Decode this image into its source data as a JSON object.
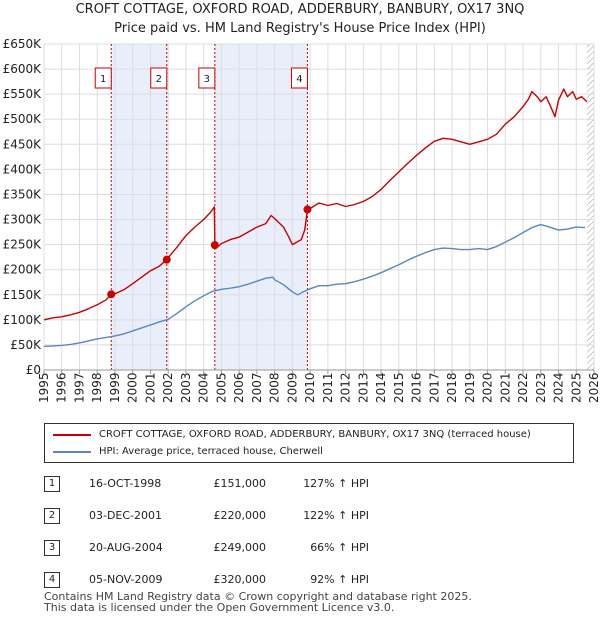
{
  "chart_data": {
    "type": "line",
    "title": "CROFT COTTAGE, OXFORD ROAD, ADDERBURY, BANBURY, OX17 3NQ",
    "subtitle": "Price paid vs. HM Land Registry's House Price Index (HPI)",
    "xlim": [
      1995,
      2026
    ],
    "ylim": [
      0,
      650000
    ],
    "x_ticks": [
      "1995",
      "1996",
      "1997",
      "1998",
      "1999",
      "2000",
      "2001",
      "2002",
      "2003",
      "2004",
      "2005",
      "2006",
      "2007",
      "2008",
      "2009",
      "2010",
      "2011",
      "2012",
      "2013",
      "2014",
      "2015",
      "2016",
      "2017",
      "2018",
      "2019",
      "2020",
      "2021",
      "2022",
      "2023",
      "2024",
      "2025",
      "2026"
    ],
    "y_ticks": [
      {
        "value": 0,
        "label": "£0"
      },
      {
        "value": 50000,
        "label": "£50K"
      },
      {
        "value": 100000,
        "label": "£100K"
      },
      {
        "value": 150000,
        "label": "£150K"
      },
      {
        "value": 200000,
        "label": "£200K"
      },
      {
        "value": 250000,
        "label": "£250K"
      },
      {
        "value": 300000,
        "label": "£300K"
      },
      {
        "value": 350000,
        "label": "£350K"
      },
      {
        "value": 400000,
        "label": "£400K"
      },
      {
        "value": 450000,
        "label": "£450K"
      },
      {
        "value": 500000,
        "label": "£500K"
      },
      {
        "value": 550000,
        "label": "£550K"
      },
      {
        "value": 600000,
        "label": "£600K"
      },
      {
        "value": 650000,
        "label": "£650K"
      }
    ],
    "series": [
      {
        "name": "CROFT COTTAGE, OXFORD ROAD, ADDERBURY, BANBURY, OX17 3NQ (terraced house)",
        "color": "#cc0000",
        "x": [
          1995.0,
          1995.5,
          1996.0,
          1996.5,
          1997.0,
          1997.5,
          1998.0,
          1998.5,
          1998.79,
          1999.0,
          1999.5,
          2000.0,
          2000.5,
          2001.0,
          2001.5,
          2001.92,
          2002.0,
          2002.5,
          2003.0,
          2003.5,
          2004.0,
          2004.4,
          2004.6,
          2004.63,
          2004.8,
          2005.0,
          2005.5,
          2006.0,
          2006.5,
          2007.0,
          2007.5,
          2007.8,
          2008.0,
          2008.5,
          2008.8,
          2009.0,
          2009.5,
          2009.7,
          2009.85,
          2010.0,
          2010.5,
          2011.0,
          2011.5,
          2012.0,
          2012.5,
          2013.0,
          2013.5,
          2014.0,
          2014.5,
          2015.0,
          2015.5,
          2016.0,
          2016.5,
          2017.0,
          2017.5,
          2018.0,
          2018.5,
          2019.0,
          2019.5,
          2020.0,
          2020.5,
          2021.0,
          2021.5,
          2022.0,
          2022.3,
          2022.5,
          2022.8,
          2023.0,
          2023.3,
          2023.5,
          2023.8,
          2024.0,
          2024.3,
          2024.5,
          2024.8,
          2025.0,
          2025.3,
          2025.6
        ],
        "values": [
          100000,
          104000,
          106000,
          110000,
          115000,
          122000,
          130000,
          140000,
          151000,
          152000,
          160000,
          172000,
          185000,
          198000,
          207000,
          220000,
          224000,
          245000,
          268000,
          285000,
          300000,
          315000,
          325000,
          249000,
          246000,
          252000,
          260000,
          265000,
          275000,
          285000,
          292000,
          308000,
          302000,
          285000,
          265000,
          250000,
          260000,
          280000,
          320000,
          322000,
          333000,
          328000,
          332000,
          326000,
          330000,
          336000,
          346000,
          360000,
          378000,
          395000,
          412000,
          428000,
          443000,
          456000,
          462000,
          460000,
          455000,
          450000,
          455000,
          460000,
          470000,
          490000,
          505000,
          525000,
          540000,
          555000,
          545000,
          535000,
          545000,
          530000,
          505000,
          538000,
          560000,
          545000,
          555000,
          540000,
          545000,
          535000
        ]
      },
      {
        "name": "HPI: Average price, terraced house, Cherwell",
        "color": "#5b86c5",
        "x": [
          1995.0,
          1995.5,
          1996.0,
          1996.5,
          1997.0,
          1997.5,
          1998.0,
          1998.5,
          1999.0,
          1999.5,
          2000.0,
          2000.5,
          2001.0,
          2001.5,
          2002.0,
          2002.5,
          2003.0,
          2003.5,
          2004.0,
          2004.5,
          2005.0,
          2005.5,
          2006.0,
          2006.5,
          2007.0,
          2007.5,
          2007.9,
          2008.0,
          2008.5,
          2009.0,
          2009.3,
          2009.5,
          2010.0,
          2010.5,
          2011.0,
          2011.5,
          2012.0,
          2012.5,
          2013.0,
          2013.5,
          2014.0,
          2014.5,
          2015.0,
          2015.5,
          2016.0,
          2016.5,
          2017.0,
          2017.5,
          2018.0,
          2018.5,
          2019.0,
          2019.5,
          2020.0,
          2020.5,
          2021.0,
          2021.5,
          2022.0,
          2022.5,
          2023.0,
          2023.5,
          2024.0,
          2024.5,
          2025.0,
          2025.5
        ],
        "values": [
          47000,
          48000,
          49000,
          51000,
          54000,
          58000,
          62000,
          65000,
          68000,
          72000,
          78000,
          84000,
          90000,
          96000,
          101000,
          113000,
          126000,
          138000,
          148000,
          157000,
          161000,
          163000,
          166000,
          171000,
          177000,
          183000,
          185000,
          180000,
          170000,
          156000,
          150000,
          154000,
          162000,
          168000,
          168000,
          171000,
          172000,
          176000,
          181000,
          187000,
          194000,
          202000,
          210000,
          219000,
          227000,
          234000,
          240000,
          243000,
          242000,
          240000,
          240000,
          242000,
          240000,
          246000,
          255000,
          264000,
          274000,
          284000,
          290000,
          285000,
          279000,
          281000,
          285000,
          284000
        ]
      }
    ],
    "sales": [
      {
        "label": "1",
        "x": 1998.79,
        "value": 151000
      },
      {
        "label": "2",
        "x": 2001.92,
        "value": 220000
      },
      {
        "label": "3",
        "x": 2004.63,
        "value": 249000
      },
      {
        "label": "4",
        "x": 2009.85,
        "value": 320000
      }
    ],
    "shaded_spans": [
      [
        1998.79,
        2001.92
      ],
      [
        2004.63,
        2009.85
      ]
    ],
    "hatched_from": 2025.6,
    "legend_position": "below"
  },
  "legend": {
    "items": [
      {
        "label": "CROFT COTTAGE, OXFORD ROAD, ADDERBURY, BANBURY, OX17 3NQ (terraced house)",
        "color": "#cc0000"
      },
      {
        "label": "HPI: Average price, terraced house, Cherwell",
        "color": "#5b86c5"
      }
    ]
  },
  "sales_table": [
    {
      "num": "1",
      "date": "16-OCT-1998",
      "price": "£151,000",
      "hpi": "127% ↑ HPI"
    },
    {
      "num": "2",
      "date": "03-DEC-2001",
      "price": "£220,000",
      "hpi": "122% ↑ HPI"
    },
    {
      "num": "3",
      "date": "20-AUG-2004",
      "price": "£249,000",
      "hpi": "66% ↑ HPI"
    },
    {
      "num": "4",
      "date": "05-NOV-2009",
      "price": "£320,000",
      "hpi": "92% ↑ HPI"
    }
  ],
  "footer": {
    "line1": "Contains HM Land Registry data © Crown copyright and database right 2025.",
    "line2": "This data is licensed under the Open Government Licence v3.0."
  }
}
